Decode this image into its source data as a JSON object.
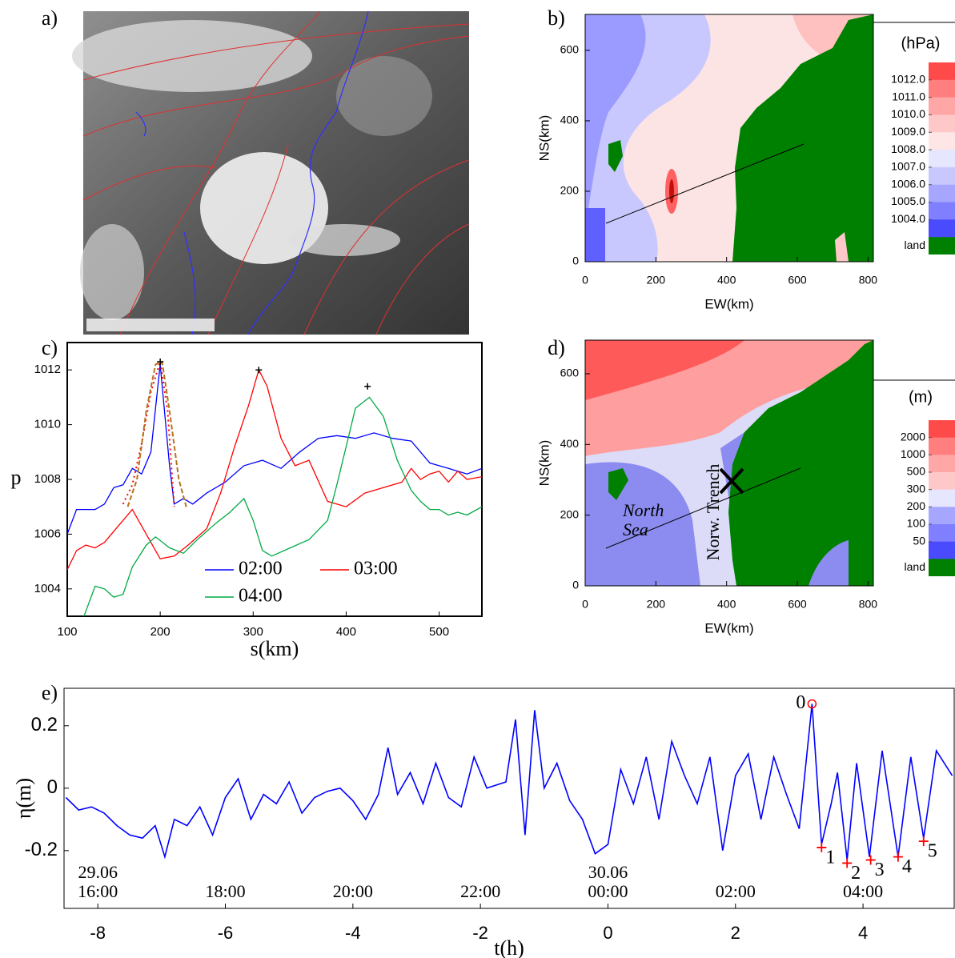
{
  "chart_data": [
    {
      "type": "image",
      "label": "a)"
    },
    {
      "type": "contour",
      "label": "b)",
      "xlabel": "EW(km)",
      "ylabel": "NS(km)",
      "xlim": [
        0,
        815
      ],
      "ylim": [
        0,
        702
      ],
      "xticks": [
        0,
        200,
        400,
        600,
        800
      ],
      "yticks": [
        0,
        200,
        400,
        600
      ],
      "colorbar": {
        "title": "(hPa)",
        "ticks": [
          {
            "value": 1012,
            "label": "1012.0"
          },
          {
            "value": 1011,
            "label": "1011.0"
          },
          {
            "value": 1010,
            "label": "1010.0"
          },
          {
            "value": 1009,
            "label": "1009.0"
          },
          {
            "value": 1008,
            "label": "1008.0"
          },
          {
            "value": 1007,
            "label": "1007.0"
          },
          {
            "value": 1006,
            "label": "1006.0"
          },
          {
            "value": 1005,
            "label": "1005.0"
          },
          {
            "value": 1004,
            "label": "1004.0"
          }
        ],
        "colors": [
          "#ff4a4a",
          "#ff7f7f",
          "#ffa6a6",
          "#ffc8c8",
          "#ffe6e6",
          "#e6e6ff",
          "#c8c8ff",
          "#a6a6ff",
          "#7f7fff",
          "#4a4aff"
        ],
        "land_label": "land",
        "land_color": "#008000"
      }
    },
    {
      "type": "line",
      "label": "c)",
      "xlabel": "s(km)",
      "ylabel": "p",
      "xlim": [
        100,
        546
      ],
      "ylim": [
        1003,
        1013
      ],
      "xticks": [
        100,
        200,
        300,
        400,
        500
      ],
      "yticks": [
        1004,
        1006,
        1008,
        1010,
        1012
      ],
      "series": [
        {
          "name": "02:00",
          "color": "#0000ff",
          "x": [
            100,
            110,
            120,
            130,
            140,
            150,
            160,
            170,
            180,
            190,
            200,
            210,
            215,
            225,
            235,
            250,
            270,
            290,
            310,
            330,
            350,
            370,
            390,
            410,
            430,
            450,
            470,
            490,
            510,
            530,
            546
          ],
          "values": [
            1006.0,
            1006.9,
            1006.9,
            1006.9,
            1007.1,
            1007.7,
            1007.8,
            1008.4,
            1008.2,
            1009.0,
            1012.2,
            1008.5,
            1007.1,
            1007.3,
            1007.1,
            1007.5,
            1007.9,
            1008.5,
            1008.7,
            1008.4,
            1009.0,
            1009.5,
            1009.6,
            1009.5,
            1009.7,
            1009.5,
            1009.4,
            1008.6,
            1008.4,
            1008.2,
            1008.4
          ]
        },
        {
          "name": "03:00",
          "color": "#ff0000",
          "x": [
            100,
            110,
            120,
            130,
            140,
            155,
            170,
            185,
            200,
            215,
            230,
            250,
            265,
            280,
            295,
            306,
            315,
            330,
            345,
            360,
            380,
            400,
            420,
            440,
            460,
            470,
            480,
            490,
            500,
            510,
            520,
            530,
            546
          ],
          "values": [
            1004.7,
            1005.4,
            1005.6,
            1005.5,
            1005.7,
            1006.3,
            1006.9,
            1006.0,
            1005.1,
            1005.2,
            1005.6,
            1006.2,
            1007.5,
            1009.2,
            1010.7,
            1012.0,
            1011.4,
            1009.5,
            1008.5,
            1008.7,
            1007.2,
            1007.0,
            1007.5,
            1007.7,
            1007.9,
            1008.4,
            1008.0,
            1008.2,
            1008.3,
            1007.9,
            1008.3,
            1008.0,
            1008.1
          ]
        },
        {
          "name": "04:00",
          "color": "#00aa44",
          "x": [
            118,
            130,
            140,
            150,
            160,
            170,
            185,
            195,
            210,
            225,
            240,
            260,
            275,
            290,
            300,
            310,
            320,
            340,
            360,
            380,
            390,
            400,
            410,
            425,
            440,
            455,
            470,
            480,
            490,
            500,
            510,
            520,
            530,
            546
          ],
          "values": [
            1003.0,
            1004.1,
            1004.0,
            1003.7,
            1003.8,
            1004.8,
            1005.6,
            1005.9,
            1005.5,
            1005.3,
            1005.8,
            1006.4,
            1006.8,
            1007.3,
            1006.5,
            1005.4,
            1005.2,
            1005.5,
            1005.8,
            1006.5,
            1007.8,
            1009.2,
            1010.6,
            1011.0,
            1010.3,
            1008.7,
            1007.6,
            1007.2,
            1006.9,
            1006.9,
            1006.7,
            1006.8,
            1006.7,
            1007.0
          ]
        },
        {
          "color": "#ff0000",
          "dash": "dotted",
          "x": [
            160,
            170,
            180,
            190,
            200,
            208,
            215
          ],
          "values": [
            1007.1,
            1007.8,
            1009.3,
            1011.2,
            1012.3,
            1010.5,
            1007.0
          ]
        },
        {
          "color": "#b5731c",
          "dash": "dashed",
          "x": [
            165,
            175,
            185,
            195,
            202,
            210,
            220,
            228
          ],
          "values": [
            1007.0,
            1008.0,
            1010.5,
            1012.2,
            1012.3,
            1010.5,
            1008.0,
            1007.0
          ]
        },
        {
          "color": "#000000",
          "marker": "+",
          "x": [
            200,
            306,
            423
          ],
          "values": [
            1012.3,
            1012.0,
            1011.4
          ]
        }
      ]
    },
    {
      "type": "contour",
      "label": "d)",
      "xlabel": "EW(km)",
      "ylabel": "NS(km)",
      "xlim": [
        0,
        815
      ],
      "ylim": [
        0,
        695
      ],
      "xticks": [
        0,
        200,
        400,
        600,
        800
      ],
      "yticks": [
        0,
        200,
        400,
        600
      ],
      "annotations": [
        "North",
        "Sea",
        "Norw. Trench"
      ],
      "colorbar": {
        "title": "(m)",
        "ticks": [
          2000,
          1000,
          500,
          300,
          200,
          100,
          50
        ],
        "colors": [
          "#ff4a4a",
          "#ff7f7f",
          "#ffa6a6",
          "#ffc8c8",
          "#e6e6ff",
          "#a6a6ff",
          "#7f7fff",
          "#4a4aff"
        ],
        "land_label": "land",
        "land_color": "#008000"
      }
    },
    {
      "type": "line",
      "label": "e)",
      "xlabel": "t(h)",
      "ylabel": "η(m)",
      "xlim": [
        -8.53,
        5.43
      ],
      "ylim": [
        -0.385,
        0.32
      ],
      "xticks": [
        -8,
        -6,
        -4,
        -2,
        0,
        2,
        4
      ],
      "yticks": [
        -0.2,
        0,
        0.2
      ],
      "time_labels": [
        {
          "value": -8,
          "date": "29.06",
          "label": "16:00"
        },
        {
          "value": -6,
          "label": "18:00"
        },
        {
          "value": -4,
          "label": "20:00"
        },
        {
          "value": -2,
          "label": "22:00"
        },
        {
          "value": 0,
          "date": "30.06",
          "label": "00:00"
        },
        {
          "value": 2,
          "label": "02:00"
        },
        {
          "value": 4,
          "label": "04:00"
        }
      ],
      "series": [
        {
          "color": "#0000ff",
          "x": [
            -8.5,
            -8.3,
            -8.1,
            -7.9,
            -7.7,
            -7.5,
            -7.3,
            -7.1,
            -6.95,
            -6.8,
            -6.6,
            -6.4,
            -6.2,
            -6.0,
            -5.8,
            -5.6,
            -5.4,
            -5.2,
            -5.0,
            -4.8,
            -4.6,
            -4.4,
            -4.2,
            -4.0,
            -3.8,
            -3.6,
            -3.45,
            -3.3,
            -3.1,
            -2.9,
            -2.7,
            -2.5,
            -2.3,
            -2.1,
            -1.9,
            -1.6,
            -1.45,
            -1.3,
            -1.15,
            -1.0,
            -0.8,
            -0.6,
            -0.4,
            -0.2,
            0.0,
            0.2,
            0.4,
            0.6,
            0.8,
            1.0,
            1.2,
            1.4,
            1.6,
            1.8,
            2.0,
            2.2,
            2.4,
            2.6,
            2.8,
            3.0,
            3.2,
            3.35,
            3.5,
            3.6,
            3.75,
            3.9,
            4.1,
            4.3,
            4.55,
            4.75,
            4.95,
            5.15,
            5.4
          ],
          "values": [
            -0.03,
            -0.07,
            -0.06,
            -0.08,
            -0.12,
            -0.15,
            -0.16,
            -0.12,
            -0.22,
            -0.1,
            -0.12,
            -0.06,
            -0.15,
            -0.03,
            0.03,
            -0.1,
            -0.02,
            -0.05,
            0.02,
            -0.08,
            -0.03,
            -0.01,
            0.0,
            -0.04,
            -0.1,
            -0.02,
            0.13,
            -0.02,
            0.05,
            -0.05,
            0.08,
            -0.03,
            -0.06,
            0.1,
            0.0,
            0.02,
            0.22,
            -0.15,
            0.25,
            0.0,
            0.08,
            -0.04,
            -0.1,
            -0.21,
            -0.18,
            0.06,
            -0.05,
            0.1,
            -0.1,
            0.15,
            0.04,
            -0.05,
            0.1,
            -0.2,
            0.04,
            0.11,
            -0.1,
            0.1,
            -0.02,
            -0.13,
            0.27,
            -0.18,
            -0.05,
            0.05,
            -0.23,
            0.08,
            -0.22,
            0.12,
            -0.22,
            0.1,
            -0.16,
            0.12,
            0.04
          ]
        }
      ],
      "annotations": [
        {
          "text": "0",
          "x": 3.2,
          "y": 0.27,
          "marker": "o"
        },
        {
          "text": "1",
          "x": 3.35,
          "y": -0.19,
          "marker": "+"
        },
        {
          "text": "2",
          "x": 3.75,
          "y": -0.24,
          "marker": "+"
        },
        {
          "text": "3",
          "x": 4.12,
          "y": -0.23,
          "marker": "+"
        },
        {
          "text": "4",
          "x": 4.55,
          "y": -0.22,
          "marker": "+"
        },
        {
          "text": "5",
          "x": 4.95,
          "y": -0.17,
          "marker": "+"
        }
      ],
      "annotation_color": "#ff0000"
    }
  ]
}
